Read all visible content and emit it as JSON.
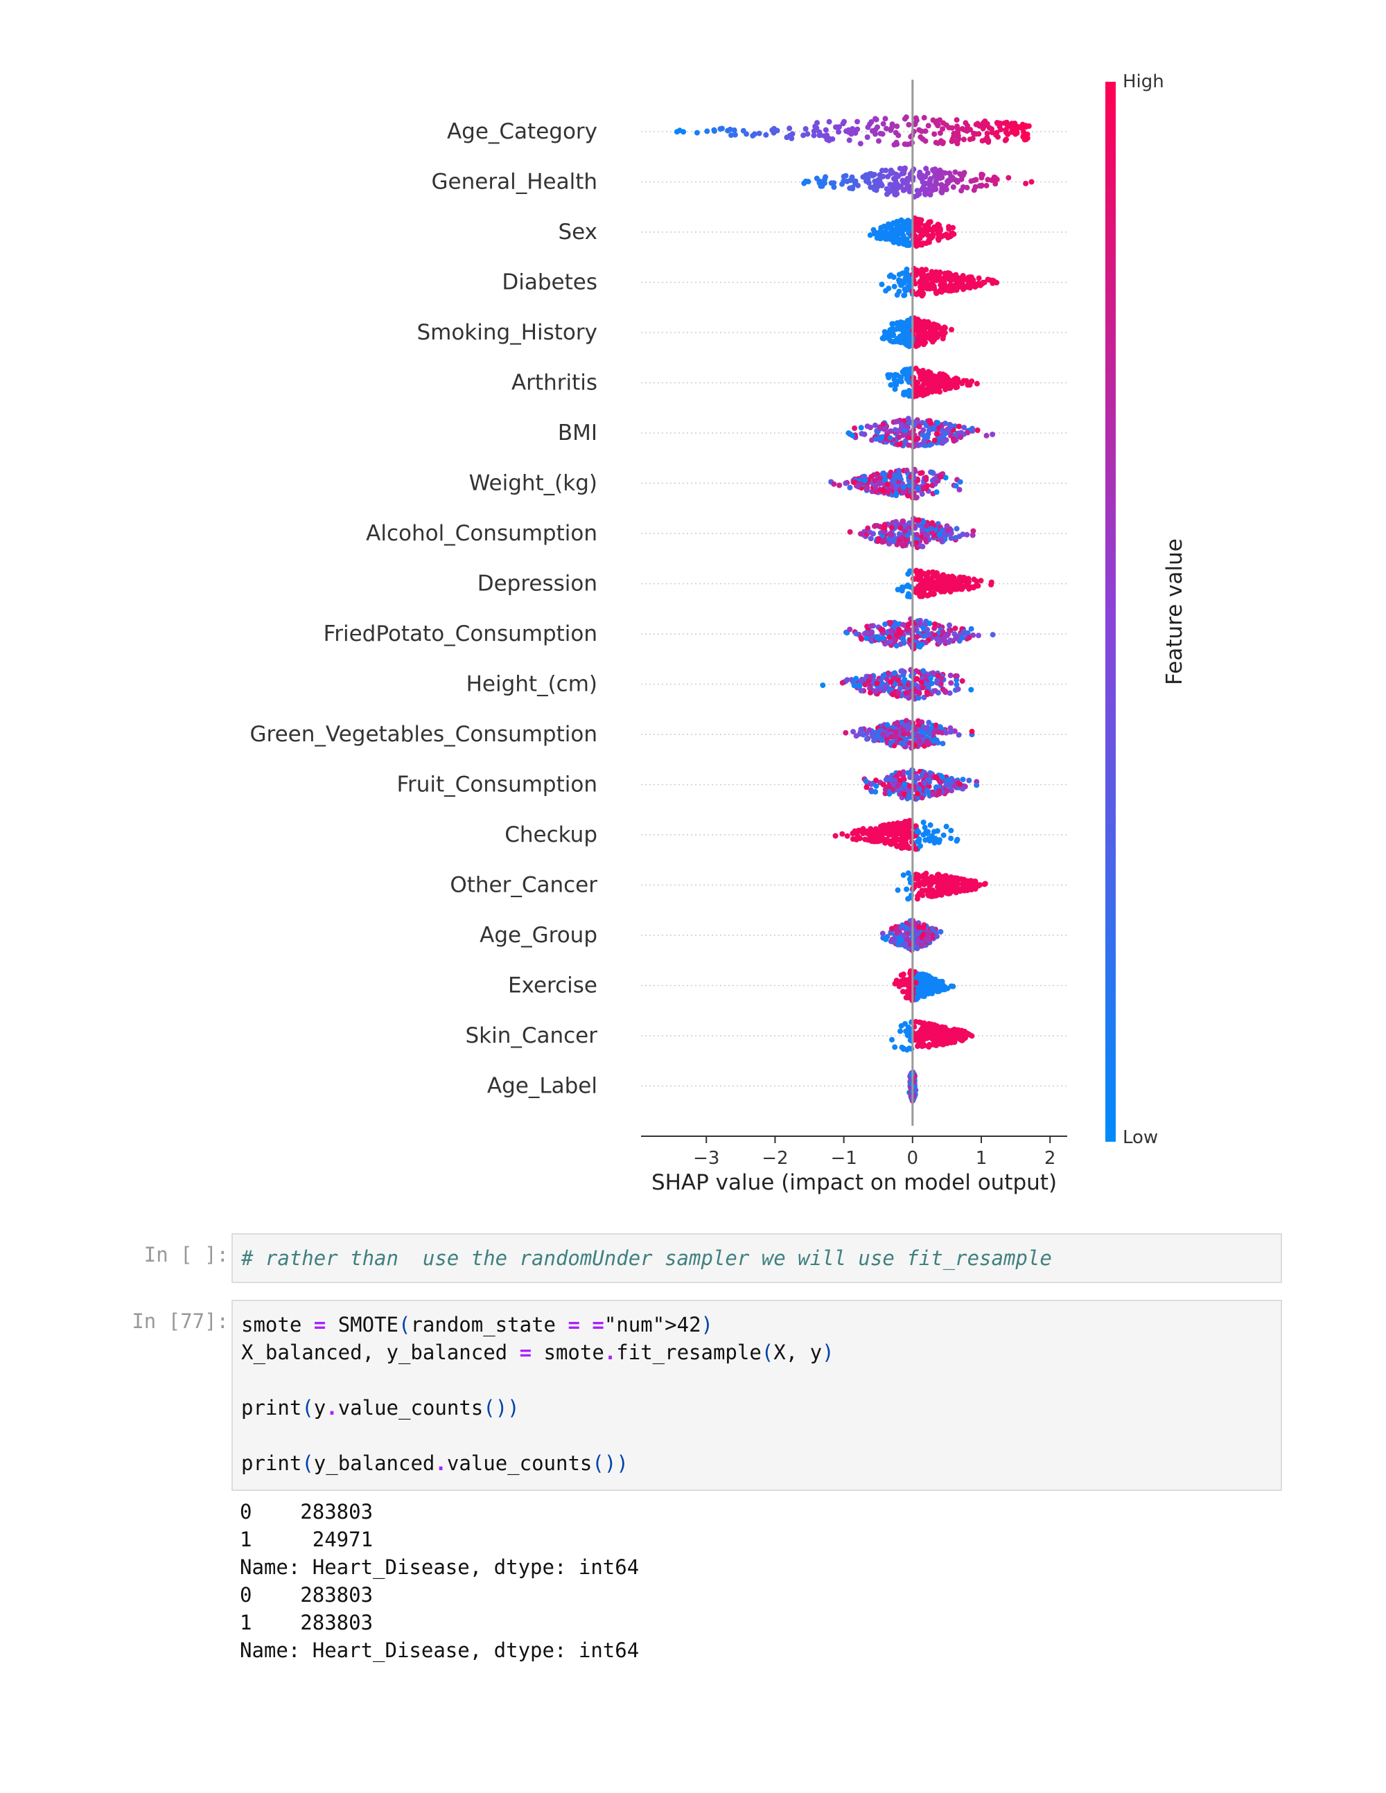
{
  "chart_data": {
    "type": "scatter",
    "subtype": "shap-beeswarm-summary",
    "features": [
      "Age_Category",
      "General_Health",
      "Sex",
      "Diabetes",
      "Smoking_History",
      "Arthritis",
      "BMI",
      "Weight_(kg)",
      "Alcohol_Consumption",
      "Depression",
      "FriedPotato_Consumption",
      "Height_(cm)",
      "Green_Vegetables_Consumption",
      "Fruit_Consumption",
      "Checkup",
      "Other_Cancer",
      "Age_Group",
      "Exercise",
      "Skin_Cancer",
      "Age_Label"
    ],
    "shap_ranges": [
      {
        "feature": "Age_Category",
        "min": -3.6,
        "max": 1.7
      },
      {
        "feature": "General_Health",
        "min": -1.9,
        "max": 2.0
      },
      {
        "feature": "Sex",
        "min": -0.85,
        "max": 0.8
      },
      {
        "feature": "Diabetes",
        "min": -0.6,
        "max": 1.35
      },
      {
        "feature": "Smoking_History",
        "min": -0.65,
        "max": 0.75
      },
      {
        "feature": "Arthritis",
        "min": -0.55,
        "max": 1.0
      },
      {
        "feature": "BMI",
        "min": -1.2,
        "max": 1.3
      },
      {
        "feature": "Weight_(kg)",
        "min": -1.3,
        "max": 0.9
      },
      {
        "feature": "Alcohol_Consumption",
        "min": -1.1,
        "max": 1.1
      },
      {
        "feature": "Depression",
        "min": -0.4,
        "max": 1.25
      },
      {
        "feature": "FriedPotato_Consumption",
        "min": -1.25,
        "max": 1.3
      },
      {
        "feature": "Height_(cm)",
        "min": -1.4,
        "max": 1.1
      },
      {
        "feature": "Green_Vegetables_Consumption",
        "min": -1.15,
        "max": 0.9
      },
      {
        "feature": "Fruit_Consumption",
        "min": -0.95,
        "max": 1.15
      },
      {
        "feature": "Checkup",
        "min": -1.2,
        "max": 0.75
      },
      {
        "feature": "Other_Cancer",
        "min": -0.35,
        "max": 1.25
      },
      {
        "feature": "Age_Group",
        "min": -0.55,
        "max": 0.55
      },
      {
        "feature": "Exercise",
        "min": -0.35,
        "max": 0.65
      },
      {
        "feature": "Skin_Cancer",
        "min": -0.4,
        "max": 1.1
      },
      {
        "feature": "Age_Label",
        "min": -0.05,
        "max": 0.05
      }
    ],
    "xlabel": "SHAP value (impact on model output)",
    "xticks": [
      "−3",
      "−2",
      "−1",
      "0",
      "1",
      "2"
    ],
    "xtick_values": [
      -3,
      -2,
      -1,
      0,
      1,
      2
    ],
    "xlim": [
      -3.95,
      2.25
    ],
    "colorbar": {
      "label": "Feature value",
      "high": "High",
      "low": "Low",
      "high_color": "#ff0052",
      "low_color": "#008bfb"
    },
    "grid": false,
    "legend": "colorbar-right"
  },
  "cells": {
    "comment_cell": {
      "prompt": "In [ ]:",
      "code": "# rather than  use the randomUnder sampler we will use fit_resample"
    },
    "smote_cell": {
      "prompt": "In [77]:",
      "lines": [
        "smote = SMOTE(random_state = 42)",
        "X_balanced, y_balanced = smote.fit_resample(X, y)",
        "",
        "print(y.value_counts())",
        "",
        "print(y_balanced.value_counts())"
      ],
      "output": [
        "0    283803",
        "1     24971",
        "Name: Heart_Disease, dtype: int64",
        "0    283803",
        "1    283803",
        "Name: Heart_Disease, dtype: int64"
      ]
    }
  }
}
